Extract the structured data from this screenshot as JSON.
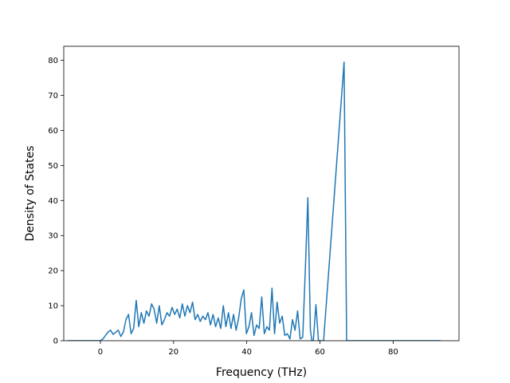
{
  "chart_data": {
    "type": "line",
    "title": "",
    "xlabel": "Frequency (THz)",
    "ylabel": "Density of States",
    "xlim": [
      -10,
      98
    ],
    "ylim": [
      0,
      84
    ],
    "xticks": [
      0,
      20,
      40,
      60,
      80
    ],
    "yticks": [
      0,
      10,
      20,
      30,
      40,
      50,
      60,
      70,
      80
    ],
    "grid": false,
    "legend": "none",
    "line_color": "#1f77b4",
    "series": [
      {
        "x": [
          -9,
          -1,
          0,
          0.7,
          1.4,
          2.1,
          2.8,
          3.5,
          4.2,
          4.9,
          5.6,
          6.3,
          7.0,
          7.7,
          8.4,
          9.1,
          9.8,
          10.5,
          11.2,
          11.9,
          12.6,
          13.3,
          14.0,
          14.7,
          15.4,
          16.1,
          16.8,
          17.5,
          18.2,
          18.9,
          19.6,
          20.3,
          21.0,
          21.7,
          22.4,
          23.1,
          23.8,
          24.5,
          25.2,
          25.9,
          26.6,
          27.3,
          28.0,
          28.7,
          29.4,
          30.1,
          30.8,
          31.5,
          32.2,
          32.9,
          33.6,
          34.3,
          35.0,
          35.7,
          36.4,
          37.1,
          37.8,
          38.5,
          39.2,
          39.9,
          40.6,
          41.3,
          42.0,
          42.7,
          43.4,
          44.1,
          44.8,
          45.5,
          46.2,
          46.9,
          47.6,
          48.3,
          49.0,
          49.7,
          50.4,
          51.1,
          51.8,
          52.5,
          53.2,
          53.9,
          54.6,
          55.3,
          56.0,
          56.7,
          57.4,
          57.8,
          58.2,
          58.9,
          59.6,
          60.3,
          61.0,
          66.6,
          67.3,
          68.0,
          75,
          93
        ],
        "y": [
          0,
          0,
          0,
          0.5,
          1.5,
          2.5,
          3.0,
          1.8,
          2.4,
          3.0,
          1.2,
          2.5,
          6.0,
          7.5,
          2.0,
          3.5,
          11.5,
          4.0,
          8.0,
          5.0,
          8.5,
          7.0,
          10.5,
          9.0,
          5.0,
          10.0,
          4.5,
          6.0,
          8.0,
          7.0,
          9.5,
          7.5,
          9.0,
          6.5,
          10.5,
          7.0,
          10.0,
          8.0,
          11.0,
          6.0,
          7.5,
          5.5,
          7.0,
          6.0,
          8.0,
          4.5,
          7.5,
          4.0,
          6.5,
          3.5,
          10.0,
          4.0,
          8.0,
          3.5,
          7.5,
          3.0,
          6.5,
          12.0,
          14.5,
          2.0,
          4.0,
          8.0,
          1.5,
          4.5,
          3.5,
          12.5,
          2.0,
          4.0,
          3.0,
          15.0,
          2.0,
          11.0,
          5.0,
          7.0,
          1.5,
          2.0,
          0.5,
          6.0,
          3.0,
          8.5,
          0.5,
          1.0,
          20.0,
          40.8,
          3.0,
          0,
          0,
          10.3,
          0,
          0,
          0,
          79.5,
          0,
          0,
          0,
          0
        ]
      }
    ]
  }
}
